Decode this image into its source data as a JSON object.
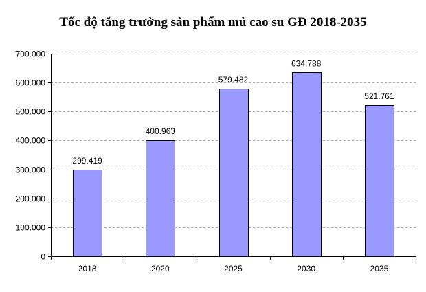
{
  "chart_data": {
    "type": "bar",
    "title": "Tốc độ tăng trưởng sản phẩm mủ cao su GĐ 2018-2035",
    "categories": [
      "2018",
      "2020",
      "2025",
      "2030",
      "2035"
    ],
    "values": [
      299419,
      400963,
      579482,
      634788,
      521761
    ],
    "value_labels": [
      "299.419",
      "400.963",
      "579.482",
      "634.788",
      "521.761"
    ],
    "xlabel": "",
    "ylabel": "",
    "ylim": [
      0,
      700000
    ],
    "y_ticks": [
      0,
      100000,
      200000,
      300000,
      400000,
      500000,
      600000,
      700000
    ],
    "y_tick_labels": [
      "0",
      "100.000",
      "200.000",
      "300.000",
      "400.000",
      "500.000",
      "600.000",
      "700.000"
    ],
    "grid": true,
    "legend": false,
    "bar_color": "#9999ff"
  }
}
